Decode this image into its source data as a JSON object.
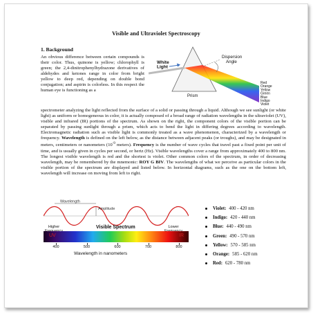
{
  "document": {
    "title": "Visible and Ultraviolet Spectroscopy",
    "section_heading": "1. Background",
    "intro_paragraph": "An obvious difference between certain compounds is their color. Thus, quinone is yellow; chlorophyll is green; the 2,4-dinitrophenylhydrazone derivatives of aldehydes and ketones range in color from bright yellow to deep red, depending on double bond conjugation; and aspirin is colorless. In this respect the human eye is functioning as a",
    "body_part1": "spectrometer analyzing the light reflected from the surface of a solid or passing through a liquid. Although we see sunlight (or white light) as uniform or homogeneous in color, it is actually composed of a broad range of radiation wavelengths in the ultraviolet (UV), visible and infrared (IR) portions of the spectrum. As shown on the right, the component colors of the visible portion can be separated by passing sunlight through a prism, which acts to bend the light in differing degrees according to wavelength. Electromagnetic radiation such as visible light is commonly treated as a wave phenomenon, characterized by a wavelength or frequency.",
    "body_term_wavelength": "Wavelength",
    "body_part2": " is defined on the left below, as the distance between adjacent peaks (or troughs), and may be designated in meters, centimeters or nanometers (10",
    "body_sup": "-9",
    "body_part3": " meters). ",
    "body_term_frequency": "Frequency",
    "body_part4": " is the number of wave cycles that travel past a fixed point per unit of time, and is usually given in cycles per second, or hertz (Hz). Visible wavelengths cover a range from approximately 400 to 800 nm. The longest visible wavelength is red and the shortest is violet. Other common colors of the spectrum, in order of decreasing wavelength, may be remembered by the mnemonic: ",
    "body_mnemonic": "ROY G BIV",
    "body_part5": ". The wavelengths of what we perceive as particular colors in the visible portion of the spectrum are displayed and listed below. In horizontal diagrams, such as the one on the bottom left, wavelength will increase on moving from left to right."
  },
  "prism_figure": {
    "white_light_label": "White\nLight",
    "dispersion_label": "Dispersion\nAngle",
    "prism_label": "Prism",
    "colors": [
      {
        "name": "Red",
        "hex": "#e01010"
      },
      {
        "name": "Orange",
        "hex": "#ff8c00"
      },
      {
        "name": "Yellow",
        "hex": "#f2d600"
      },
      {
        "name": "Green",
        "hex": "#22b030"
      },
      {
        "name": "Blue",
        "hex": "#2255dd"
      },
      {
        "name": "Indigo",
        "hex": "#4b0082"
      },
      {
        "name": "Violet",
        "hex": "#8a2be2"
      }
    ]
  },
  "wave_figure": {
    "wavelength_label": "Wavelength",
    "amplitude_label": "Amplitude",
    "spectrum_title": "Visible Spectrum",
    "higher_frequency": "Higher\nFrequency",
    "lower_frequency": "Lower\nFrequency",
    "uv_label": "UV",
    "ir_label": "IR",
    "axis_ticks": [
      "400",
      "500",
      "600",
      "700",
      "800"
    ],
    "axis_title": "Wavelength in nanometers"
  },
  "color_ranges": [
    {
      "name": "Violet:",
      "range": "400 - 420 nm"
    },
    {
      "name": "Indigo:",
      "range": "420 - 440 nm"
    },
    {
      "name": "Blue:",
      "range": "440 - 490 nm"
    },
    {
      "name": "Green:",
      "range": "490 - 570 nm"
    },
    {
      "name": "Yellow:",
      "range": "570 - 585 nm"
    },
    {
      "name": "Orange:",
      "range": "585 - 620 nm"
    },
    {
      "name": "Red:",
      "range": "620 - 780 nm"
    }
  ]
}
